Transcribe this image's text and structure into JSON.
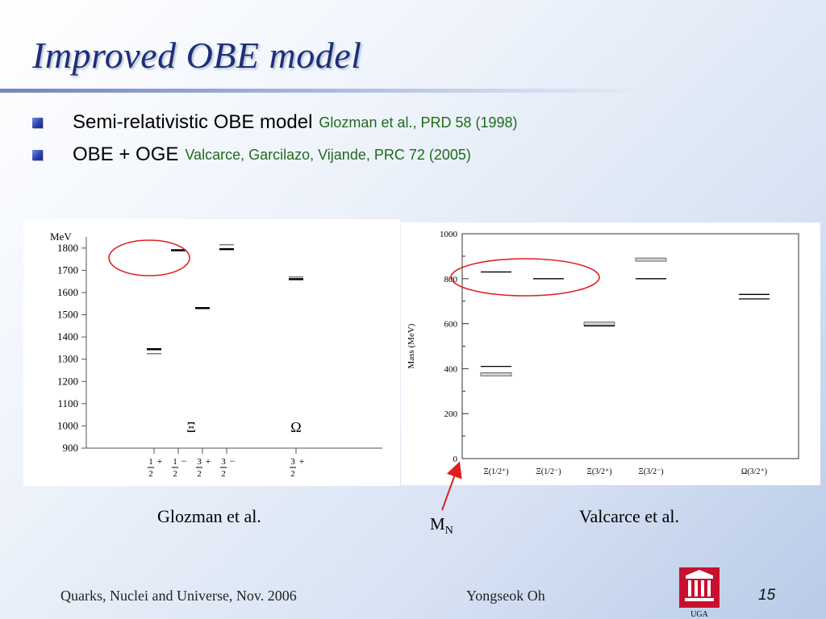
{
  "title": "Improved OBE model",
  "bullets": [
    {
      "main": "Semi-relativistic OBE model",
      "ref": "Glozman et al., PRD 58 (1998)"
    },
    {
      "main": "OBE + OGE",
      "ref": "Valcarce, Garcilazo, Vijande, PRC 72 (2005)"
    }
  ],
  "colors": {
    "title": "#1c2f7a",
    "reference_text": "#1f6b1a",
    "highlight_ellipse": "#e02020",
    "arrow": "#e02020",
    "logo": "#c8102e"
  },
  "chart_data": [
    {
      "type": "level-diagram",
      "ylabel": "MeV",
      "ylim": [
        900,
        1850
      ],
      "yticks": [
        900,
        1000,
        1100,
        1200,
        1300,
        1400,
        1500,
        1600,
        1700,
        1800
      ],
      "yticklabels": [
        "900",
        "1000",
        "1100",
        "1200",
        "1300",
        "1400",
        "1500",
        "1600",
        "1700",
        "1800"
      ],
      "groups": [
        "Ξ",
        "Ω"
      ],
      "x_labels": [
        {
          "num": "1",
          "den": "2",
          "parity": "+"
        },
        {
          "num": "1",
          "den": "2",
          "parity": "−"
        },
        {
          "num": "3",
          "den": "2",
          "parity": "+"
        },
        {
          "num": "3",
          "den": "2",
          "parity": "−"
        },
        {
          "num": "3",
          "den": "2",
          "parity": "+"
        }
      ],
      "series": [
        {
          "values": [
            1345,
            1790,
            1530,
            1795,
            1660
          ]
        },
        {
          "values": [
            1325,
            null,
            null,
            1815,
            1670
          ]
        }
      ],
      "highlight": "circled lowest 1/2+ and 1/2− Ξ states"
    },
    {
      "type": "level-diagram",
      "ylabel": "Mass (MeV)",
      "ylim": [
        0,
        1000
      ],
      "yticks": [
        0,
        200,
        400,
        600,
        800,
        1000
      ],
      "yticklabels": [
        "0",
        "200",
        "400",
        "600",
        "800",
        "1000"
      ],
      "categories": [
        "Ξ(1/2⁺)",
        "Ξ(1/2⁻)",
        "Ξ(3/2⁺)",
        "Ξ(3/2⁻)",
        "Ω(3/2⁺)"
      ],
      "series": [
        {
          "values": [
            830,
            800,
            590,
            800,
            710
          ]
        },
        {
          "values": [
            410,
            null,
            null,
            null,
            730
          ]
        },
        {
          "values": [
            375,
            null,
            600,
            885,
            null
          ]
        }
      ],
      "highlight": "circled Ξ(1/2⁺) and Ξ(1/2⁻) levels"
    }
  ],
  "captions": {
    "left": "Glozman et al.",
    "right": "Valcarce et al.",
    "mn_main": "M",
    "mn_sub": "N"
  },
  "footer": {
    "left": "Quarks, Nuclei and Universe, Nov. 2006",
    "center": "Yongseok Oh",
    "page": "15"
  }
}
